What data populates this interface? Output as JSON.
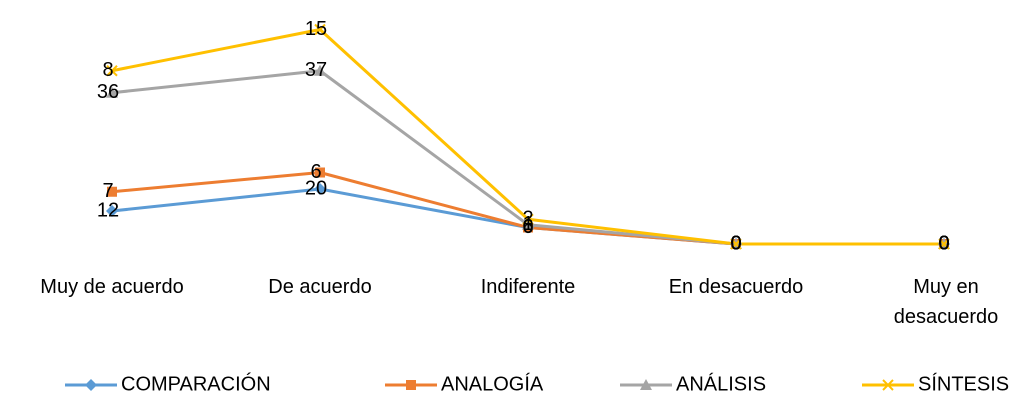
{
  "chart_data": {
    "type": "line",
    "stacked": true,
    "categories": [
      "Muy de acuerdo",
      "De acuerdo",
      "Indiferente",
      "En desacuerdo",
      "Muy en desacuerdo"
    ],
    "series": [
      {
        "name": "COMPARACIÓN",
        "color": "#5b9bd5",
        "marker": "diamond",
        "values": [
          12,
          20,
          6,
          0,
          0
        ]
      },
      {
        "name": "ANALOGÍA",
        "color": "#ed7d31",
        "marker": "square",
        "values": [
          7,
          6,
          0,
          0,
          0
        ]
      },
      {
        "name": "ANÁLISIS",
        "color": "#a5a5a5",
        "marker": "triangle",
        "values": [
          36,
          37,
          1,
          0,
          0
        ]
      },
      {
        "name": "SÍNTESIS",
        "color": "#ffc000",
        "marker": "x",
        "values": [
          8,
          15,
          2,
          0,
          0
        ]
      }
    ],
    "ylim": [
      0,
      80
    ],
    "legend": "bottom"
  }
}
